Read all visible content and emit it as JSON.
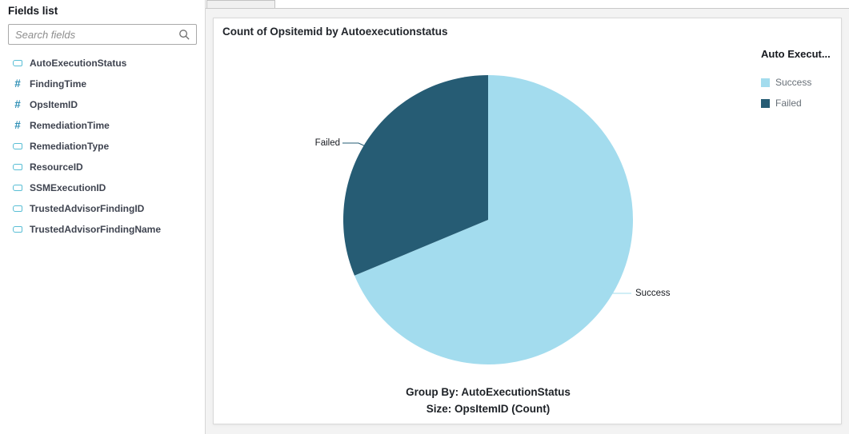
{
  "sidebar": {
    "title": "Fields list",
    "search": {
      "placeholder": "Search fields",
      "icon": "search-icon"
    },
    "field_type_icons": {
      "number": "#",
      "string": "pill-outline"
    },
    "fields": [
      {
        "name": "AutoExecutionStatus",
        "type": "string"
      },
      {
        "name": "FindingTime",
        "type": "number"
      },
      {
        "name": "OpsItemID",
        "type": "number"
      },
      {
        "name": "RemediationTime",
        "type": "number"
      },
      {
        "name": "RemediationType",
        "type": "string"
      },
      {
        "name": "ResourceID",
        "type": "string"
      },
      {
        "name": "SSMExecutionID",
        "type": "string"
      },
      {
        "name": "TrustedAdvisorFindingID",
        "type": "string"
      },
      {
        "name": "TrustedAdvisorFindingName",
        "type": "string"
      }
    ]
  },
  "main": {
    "visual_title": "Count of Opsitemid by Autoexecutionstatus",
    "footer_lines": [
      "Group By: AutoExecutionStatus",
      "Size: OpsItemID (Count)"
    ]
  },
  "legend": {
    "title": "Auto Execut...",
    "position": "right",
    "items": [
      {
        "label": "Success",
        "color": "#a3dcee"
      },
      {
        "label": "Failed",
        "color": "#265c74"
      }
    ]
  },
  "colors": {
    "success_slice": "#a3dcee",
    "failed_slice": "#265c74",
    "number_icon": "#2e8fb5",
    "string_icon": "#59bed5",
    "canvas_bg": "#f3f3f3"
  },
  "chart_data": {
    "type": "pie",
    "title": "Count of Opsitemid by Autoexecutionstatus",
    "group_by": "AutoExecutionStatus",
    "size_field": "OpsItemID (Count)",
    "start_angle_deg": 0,
    "direction": "clockwise",
    "legend_position": "right",
    "slices": [
      {
        "label": "Success",
        "percent": 68.7,
        "color": "#a3dcee"
      },
      {
        "label": "Failed",
        "percent": 31.3,
        "color": "#265c74"
      }
    ]
  }
}
